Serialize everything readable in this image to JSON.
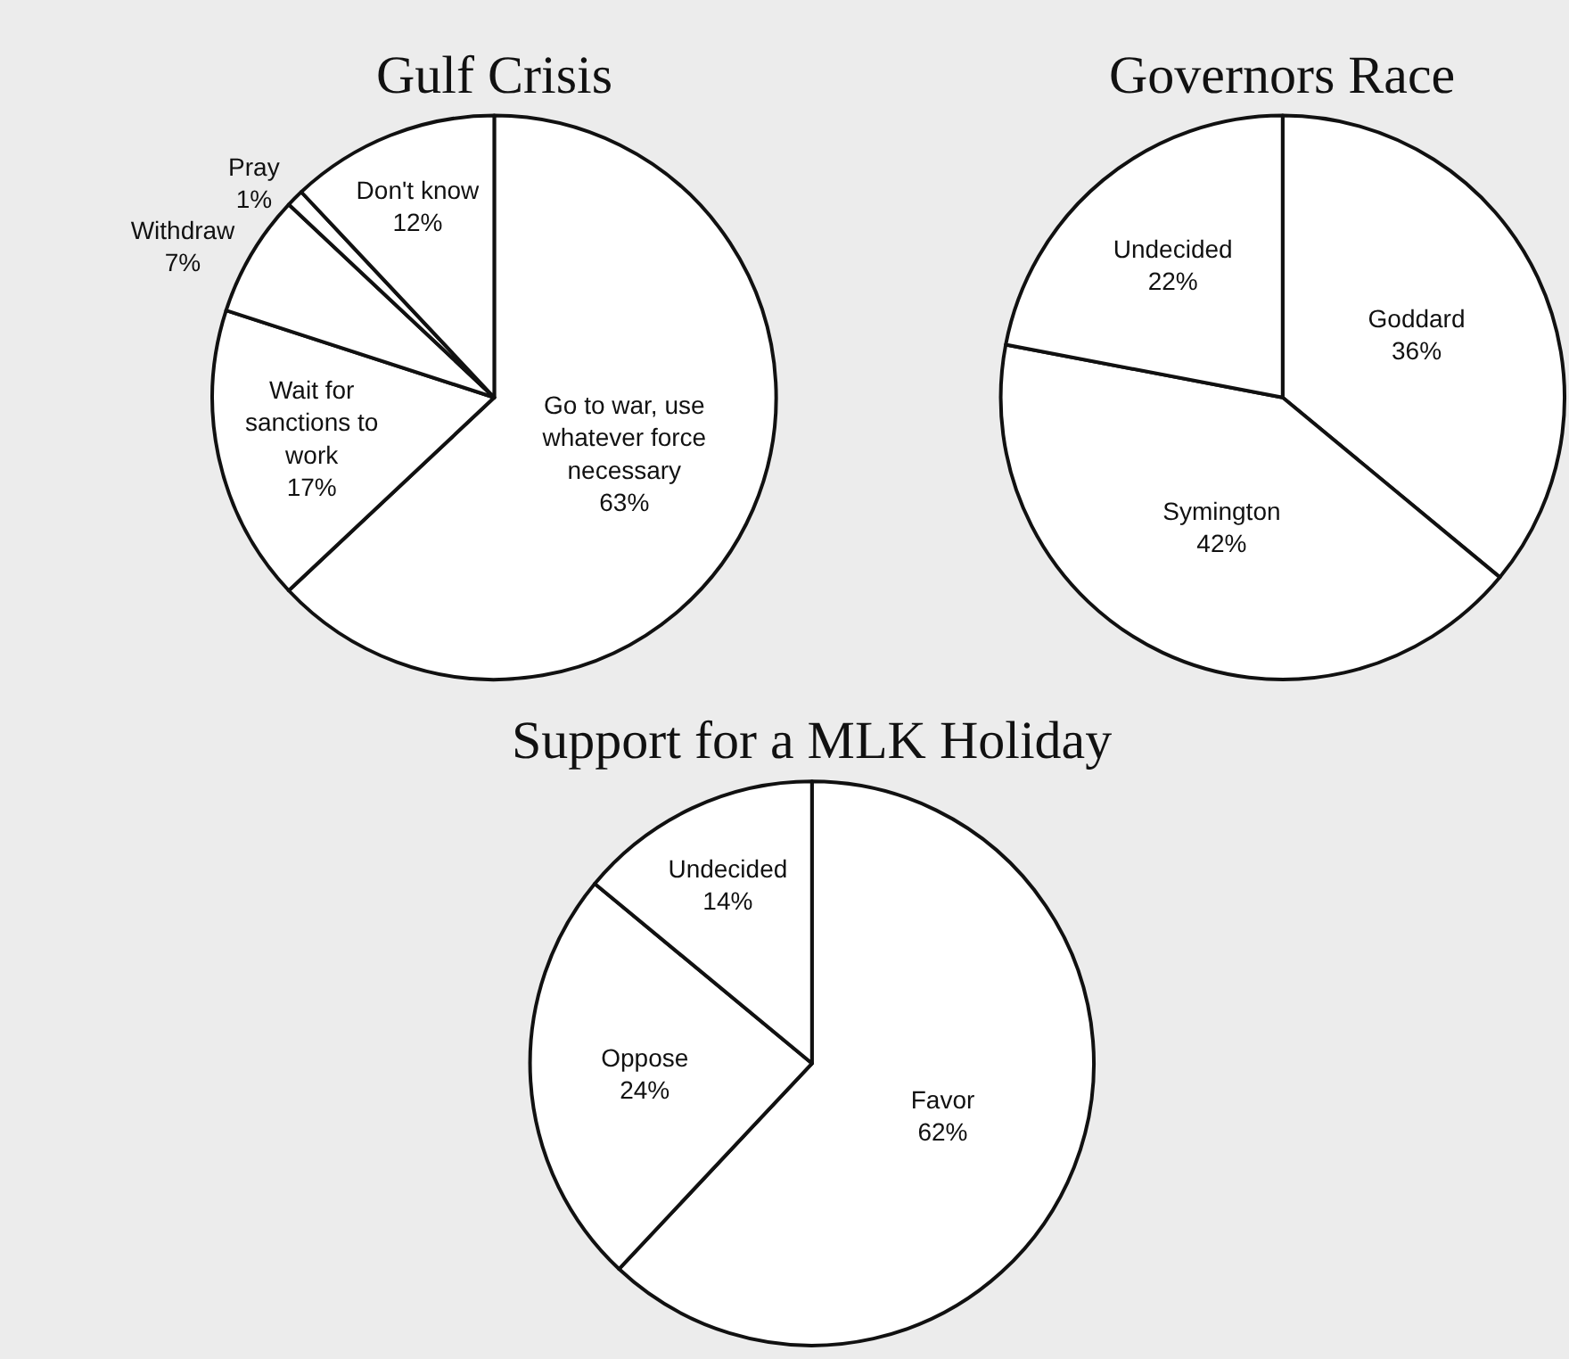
{
  "chart_data": [
    {
      "type": "pie",
      "title": "Gulf Crisis",
      "categories": [
        "Go to war, use whatever force necessary",
        "Wait for sanctions to work",
        "Withdraw",
        "Pray",
        "Don't know"
      ],
      "values": [
        63,
        17,
        7,
        1,
        12
      ],
      "value_labels": [
        "63%",
        "17%",
        "7%",
        "1%",
        "12%"
      ],
      "colors": [
        "#ffffff",
        "#ffffff",
        "#ffffff",
        "#ffffff",
        "#ffffff"
      ],
      "legend": false
    },
    {
      "type": "pie",
      "title": "Governors Race",
      "categories": [
        "Goddard",
        "Symington",
        "Undecided"
      ],
      "values": [
        36,
        42,
        22
      ],
      "value_labels": [
        "36%",
        "42%",
        "22%"
      ],
      "colors": [
        "#ffffff",
        "#ffffff",
        "#ffffff"
      ],
      "legend": false
    },
    {
      "type": "pie",
      "title": "Support for a MLK Holiday",
      "categories": [
        "Favor",
        "Oppose",
        "Undecided"
      ],
      "values": [
        62,
        24,
        14
      ],
      "value_labels": [
        "62%",
        "24%",
        "14%"
      ],
      "colors": [
        "#ffffff",
        "#ffffff",
        "#ffffff"
      ],
      "legend": false
    }
  ]
}
